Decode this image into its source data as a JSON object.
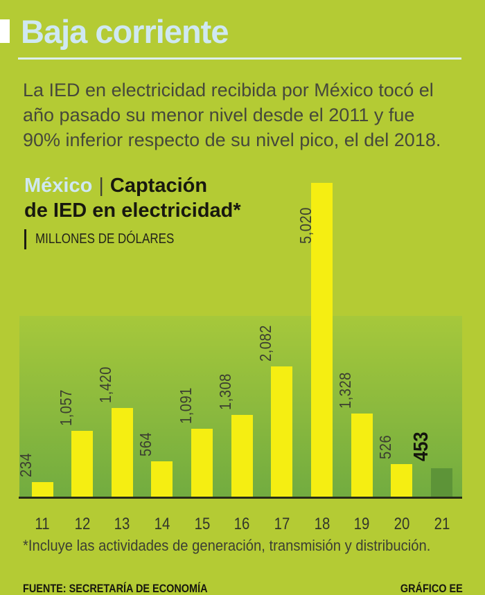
{
  "header": {
    "title": "Baja corriente"
  },
  "intro": {
    "lines": [
      "La IED en electricidad recibida por México tocó el",
      "año pasado su menor nivel desde el 2011 y fue",
      "90% inferior respecto de su nivel pico, el del 2018."
    ]
  },
  "chart_heading": {
    "accent": "México",
    "separator": "|",
    "title_line1": "Captación",
    "title_line2": "de IED en electricidad*",
    "units": "MILLONES DE DÓLARES"
  },
  "chart_data": {
    "type": "bar",
    "title": "México | Captación de IED en electricidad*",
    "ylabel": "Millones de dólares",
    "xlabel": "",
    "categories": [
      "11",
      "12",
      "13",
      "14",
      "15",
      "16",
      "17",
      "18",
      "19",
      "20",
      "21"
    ],
    "values": [
      234,
      1057,
      1420,
      564,
      1091,
      1308,
      2082,
      5020,
      1328,
      526,
      453
    ],
    "value_labels": [
      "234",
      "1,057",
      "1,420",
      "564",
      "1,091",
      "1,308",
      "2,082",
      "5,020",
      "1,328",
      "526",
      "453"
    ],
    "bar_color": "#f5ee12",
    "highlight_color": "#5d9438",
    "highlight_index": 10,
    "label_inside_index": 7,
    "ylim": [
      0,
      5020
    ],
    "grid": false,
    "legend": null
  },
  "footnote": "*Incluye las actividades de generación, transmisión y distribución.",
  "footer": {
    "source": "FUENTE: SECRETARÍA DE ECONOMÍA",
    "credit": "GRÁFICO EE"
  },
  "colors": {
    "background": "#b4cb34",
    "accent_text": "#cfe8f2",
    "underline": "#ddefec",
    "plot_top": "#a6c83b",
    "plot_bottom": "#72ac40",
    "bar_yellow": "#f5ee12",
    "bar_green": "#5d9438",
    "axis": "#272b18",
    "dark_text": "#3c3f33",
    "black_text": "#16160e"
  }
}
